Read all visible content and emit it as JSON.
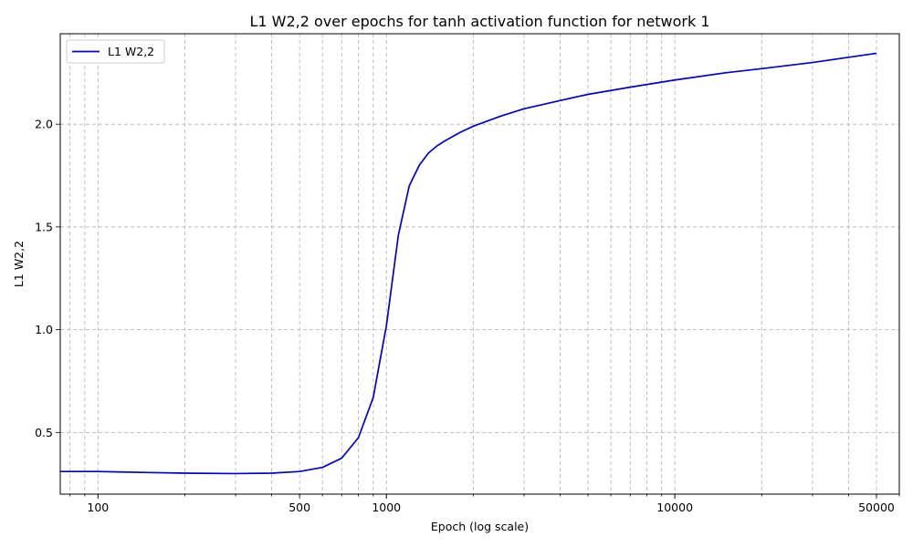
{
  "chart_data": {
    "type": "line",
    "title": "L1 W2,2 over epochs for tanh activation function for network 1",
    "xlabel": "Epoch (log scale)",
    "ylabel": "L1 W2,2",
    "x_scale": "log",
    "xlim": [
      74,
      60000
    ],
    "ylim": [
      0.2,
      2.44
    ],
    "x_ticks": [
      100,
      500,
      1000,
      10000,
      50000
    ],
    "x_tick_labels": [
      "100",
      "500",
      "1000",
      "10000",
      "50000"
    ],
    "y_ticks": [
      0.5,
      1.0,
      1.5,
      2.0
    ],
    "y_tick_labels": [
      "0.5",
      "1.0",
      "1.5",
      "2.0"
    ],
    "grid": true,
    "legend_position": "top-left",
    "series": [
      {
        "name": "L1 W2,2",
        "color": "#0000cc",
        "x": [
          74,
          100,
          150,
          200,
          300,
          400,
          500,
          600,
          700,
          800,
          900,
          1000,
          1100,
          1200,
          1300,
          1400,
          1500,
          1600,
          1800,
          2000,
          2500,
          3000,
          4000,
          5000,
          7000,
          10000,
          15000,
          20000,
          30000,
          50000
        ],
        "y": [
          0.31,
          0.31,
          0.305,
          0.302,
          0.3,
          0.302,
          0.31,
          0.33,
          0.375,
          0.475,
          0.67,
          1.02,
          1.46,
          1.7,
          1.8,
          1.86,
          1.895,
          1.92,
          1.96,
          1.99,
          2.04,
          2.075,
          2.115,
          2.145,
          2.18,
          2.215,
          2.25,
          2.27,
          2.3,
          2.345
        ]
      }
    ]
  }
}
